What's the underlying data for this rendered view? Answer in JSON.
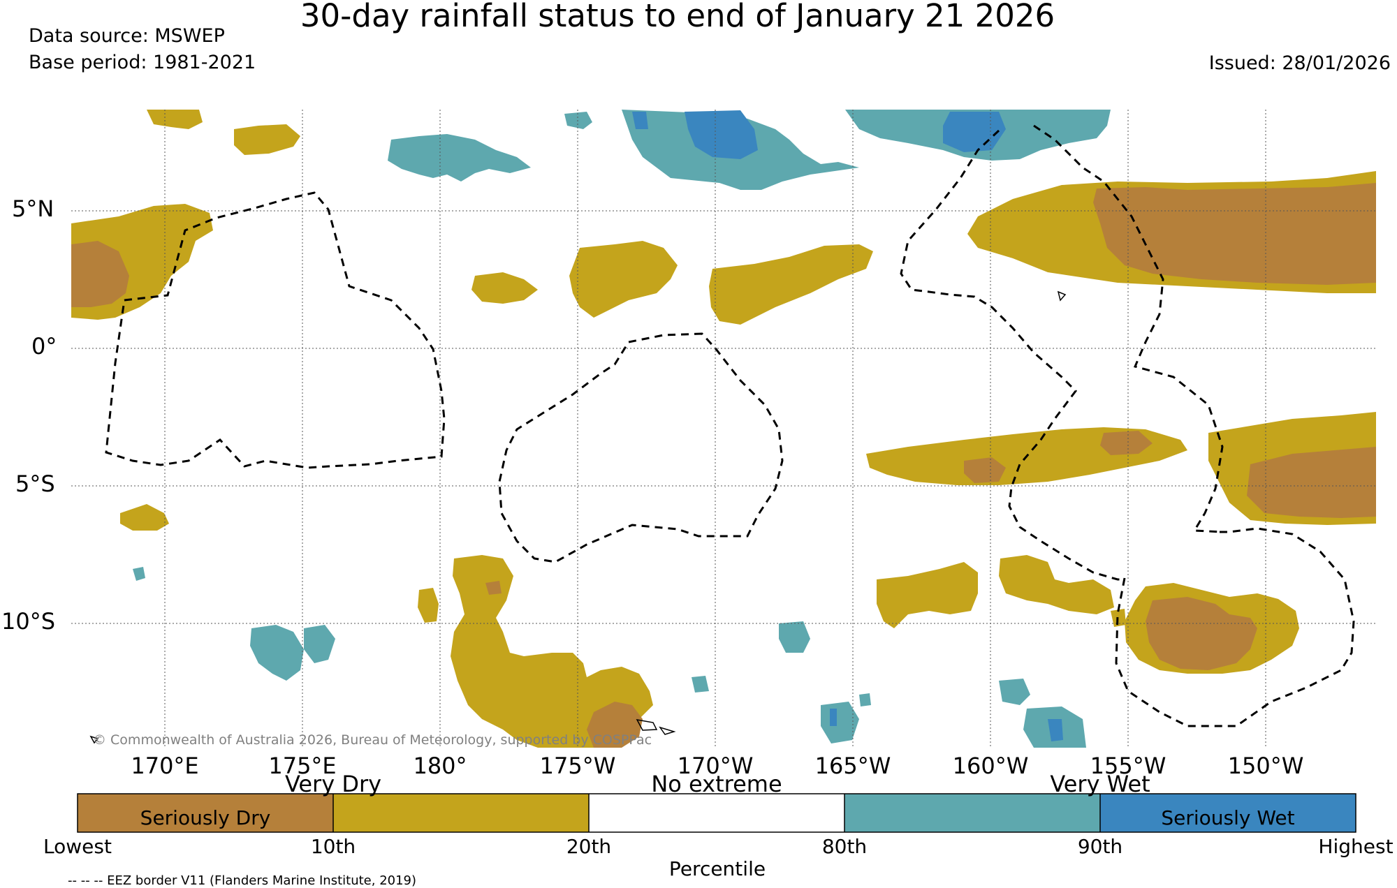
{
  "title": "30-day rainfall status to end of January 21 2026",
  "data_source": "Data source: MSWEP",
  "base_period": "Base period: 1981-2021",
  "issued": "Issued: 28/01/2026",
  "copyright": "© Commonwealth of Australia 2026, Bureau of Meteorology, supported by COSPPac",
  "lat_labels": [
    "5°N",
    "0°",
    "5°S",
    "10°S"
  ],
  "lon_labels": [
    "170°E",
    "175°E",
    "180°",
    "175°W",
    "170°W",
    "165°W",
    "160°W",
    "155°W",
    "150°W"
  ],
  "colorbar": {
    "categories": [
      "Very Dry",
      "No extreme",
      "Very Wet"
    ],
    "inner_labels": [
      "Seriously Dry",
      "Seriously Wet"
    ],
    "ticks": [
      "Lowest",
      "10th",
      "20th",
      "80th",
      "90th",
      "Highest"
    ],
    "label": "Percentile",
    "colors": {
      "seriously_dry": "#b5803a",
      "very_dry": "#c4a41c",
      "no_extreme": "#ffffff",
      "very_wet": "#5ea8ae",
      "seriously_wet": "#3a86bf"
    }
  },
  "footnote": "-- -- -- EEZ border V11 (Flanders Marine Institute, 2019)"
}
